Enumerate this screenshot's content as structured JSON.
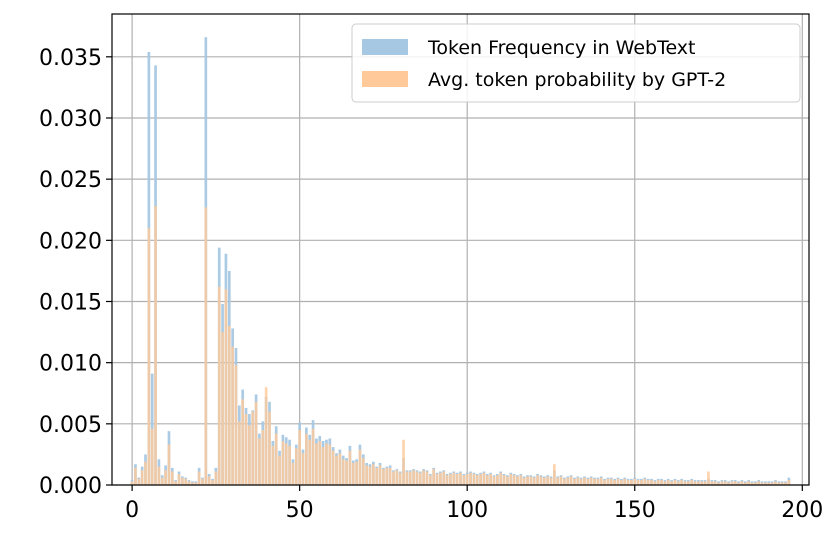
{
  "chart_data": {
    "type": "bar",
    "title": "",
    "xlabel": "",
    "ylabel": "",
    "xlim": [
      -6,
      202
    ],
    "ylim": [
      0,
      0.0385
    ],
    "grid": true,
    "legend_position": "top-right",
    "xticks": [
      0,
      50,
      100,
      150,
      200
    ],
    "xtick_labels": [
      "0",
      "50",
      "100",
      "150",
      "200"
    ],
    "yticks": [
      0,
      0.005,
      0.01,
      0.015,
      0.02,
      0.025,
      0.03,
      0.035
    ],
    "ytick_labels": [
      "0.000",
      "0.005",
      "0.010",
      "0.015",
      "0.020",
      "0.025",
      "0.030",
      "0.035"
    ],
    "series": [
      {
        "name": "Token Frequency in WebText",
        "color": "#a6c8e3",
        "values": [
          0.0004,
          0.0017,
          0.0006,
          0.0015,
          0.0025,
          0.0354,
          0.0091,
          0.0343,
          0.0021,
          0.0008,
          0.0016,
          0.0044,
          0.0014,
          0.0004,
          0.0011,
          0.0007,
          0.0006,
          0.0004,
          0.0003,
          0.0003,
          0.0014,
          0.0006,
          0.0366,
          0.0009,
          0.0005,
          0.0014,
          0.0194,
          0.0148,
          0.0189,
          0.0175,
          0.0128,
          0.0112,
          0.0065,
          0.0078,
          0.0063,
          0.0058,
          0.0061,
          0.0074,
          0.0042,
          0.0052,
          0.0072,
          0.0068,
          0.0036,
          0.0048,
          0.0028,
          0.0041,
          0.0039,
          0.0037,
          0.0021,
          0.0033,
          0.0051,
          0.0029,
          0.0047,
          0.0041,
          0.0053,
          0.0038,
          0.004,
          0.0036,
          0.0037,
          0.0038,
          0.0031,
          0.0026,
          0.0029,
          0.0024,
          0.0022,
          0.0032,
          0.002,
          0.0021,
          0.0033,
          0.0025,
          0.0018,
          0.0017,
          0.0019,
          0.0015,
          0.0018,
          0.0014,
          0.0015,
          0.0016,
          0.0012,
          0.0013,
          0.0011,
          0.0022,
          0.0012,
          0.0012,
          0.0013,
          0.0012,
          0.0011,
          0.0013,
          0.0012,
          0.0009,
          0.0014,
          0.001,
          0.0011,
          0.0012,
          0.0009,
          0.001,
          0.0011,
          0.001,
          0.0011,
          0.0009,
          0.001,
          0.0011,
          0.001,
          0.0009,
          0.001,
          0.0011,
          0.0009,
          0.001,
          0.0008,
          0.0009,
          0.0011,
          0.0009,
          0.0008,
          0.001,
          0.0009,
          0.0008,
          0.0009,
          0.0007,
          0.0008,
          0.0008,
          0.0007,
          0.0009,
          0.0008,
          0.0007,
          0.0008,
          0.0007,
          0.0012,
          0.0007,
          0.0008,
          0.0006,
          0.0007,
          0.0008,
          0.0006,
          0.0007,
          0.0006,
          0.0007,
          0.0006,
          0.0007,
          0.0006,
          0.0006,
          0.0007,
          0.0005,
          0.0006,
          0.0006,
          0.0005,
          0.0006,
          0.0005,
          0.0006,
          0.0005,
          0.0005,
          0.0006,
          0.0005,
          0.0005,
          0.0006,
          0.0005,
          0.0005,
          0.0004,
          0.0005,
          0.0005,
          0.0004,
          0.0005,
          0.0004,
          0.0005,
          0.0004,
          0.0005,
          0.0004,
          0.0004,
          0.0005,
          0.0004,
          0.0004,
          0.0004,
          0.0004,
          0.0005,
          0.0004,
          0.0004,
          0.0003,
          0.0004,
          0.0004,
          0.0003,
          0.0004,
          0.0004,
          0.0003,
          0.0004,
          0.0003,
          0.0004,
          0.0003,
          0.0003,
          0.0004,
          0.0003,
          0.0003,
          0.0003,
          0.0003,
          0.0004,
          0.0003,
          0.0003,
          0.0003,
          0.0006
        ]
      },
      {
        "name": "Avg. token probability by GPT-2",
        "color": "#ffc999",
        "values": [
          0.0003,
          0.0014,
          0.0005,
          0.0012,
          0.0019,
          0.021,
          0.0046,
          0.0228,
          0.0015,
          0.0006,
          0.0012,
          0.0033,
          0.0011,
          0.0003,
          0.0009,
          0.0006,
          0.0005,
          0.0003,
          0.0002,
          0.0002,
          0.0011,
          0.0005,
          0.0227,
          0.0007,
          0.0004,
          0.0011,
          0.0162,
          0.0125,
          0.016,
          0.013,
          0.0113,
          0.0098,
          0.0052,
          0.007,
          0.0058,
          0.0049,
          0.006,
          0.0068,
          0.0038,
          0.0045,
          0.008,
          0.006,
          0.0032,
          0.0042,
          0.0024,
          0.0036,
          0.0034,
          0.0032,
          0.0018,
          0.003,
          0.0045,
          0.0026,
          0.0042,
          0.0037,
          0.0046,
          0.0034,
          0.0036,
          0.0031,
          0.0034,
          0.0033,
          0.0028,
          0.0024,
          0.0026,
          0.0021,
          0.002,
          0.0028,
          0.0018,
          0.0019,
          0.0029,
          0.0022,
          0.0016,
          0.0015,
          0.0017,
          0.0014,
          0.0016,
          0.0013,
          0.0014,
          0.0014,
          0.0011,
          0.0012,
          0.001,
          0.0037,
          0.0011,
          0.0011,
          0.0012,
          0.0011,
          0.001,
          0.0012,
          0.0011,
          0.0008,
          0.0013,
          0.0009,
          0.001,
          0.0011,
          0.0008,
          0.0009,
          0.001,
          0.0009,
          0.001,
          0.0008,
          0.0009,
          0.001,
          0.0009,
          0.0008,
          0.0009,
          0.001,
          0.0008,
          0.0009,
          0.0007,
          0.0008,
          0.001,
          0.0008,
          0.0007,
          0.0009,
          0.0008,
          0.0007,
          0.0008,
          0.0006,
          0.0007,
          0.0007,
          0.0006,
          0.0008,
          0.0007,
          0.0006,
          0.0007,
          0.0006,
          0.0017,
          0.0006,
          0.0007,
          0.0005,
          0.0006,
          0.0007,
          0.0005,
          0.0006,
          0.0005,
          0.0006,
          0.0005,
          0.0006,
          0.0005,
          0.0005,
          0.0006,
          0.0004,
          0.0005,
          0.0005,
          0.0004,
          0.0005,
          0.0004,
          0.0005,
          0.0004,
          0.0004,
          0.0005,
          0.0004,
          0.0004,
          0.0005,
          0.0004,
          0.0004,
          0.0003,
          0.0004,
          0.0004,
          0.0003,
          0.0004,
          0.0003,
          0.0004,
          0.0003,
          0.0004,
          0.0003,
          0.0003,
          0.0004,
          0.0003,
          0.0003,
          0.0003,
          0.0003,
          0.0011,
          0.0003,
          0.0003,
          0.0002,
          0.0003,
          0.0003,
          0.0002,
          0.0003,
          0.0003,
          0.0002,
          0.0003,
          0.0002,
          0.0003,
          0.0002,
          0.0002,
          0.0003,
          0.0002,
          0.0002,
          0.0002,
          0.0002,
          0.0003,
          0.0002,
          0.0002,
          0.0002,
          0.0004
        ]
      }
    ]
  }
}
